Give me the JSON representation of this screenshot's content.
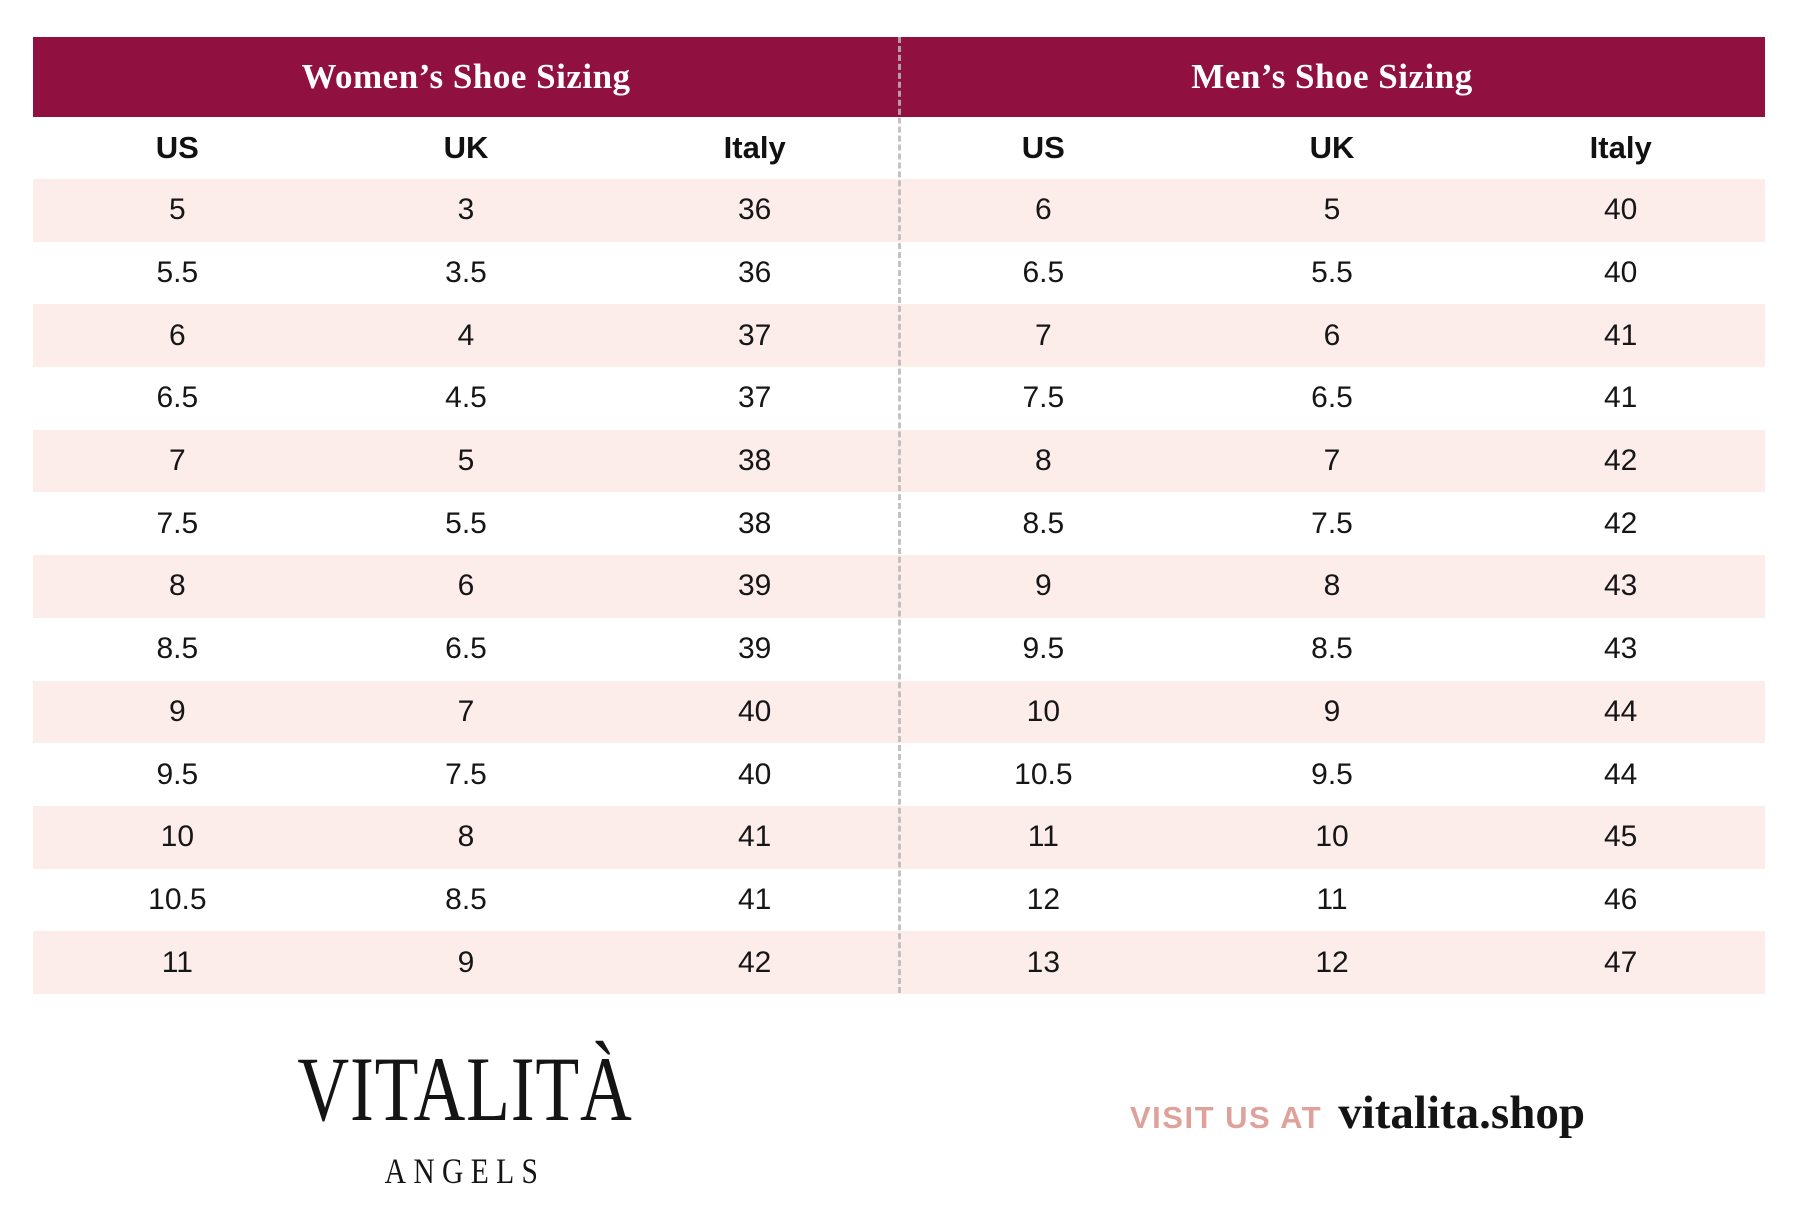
{
  "header": {
    "women_title": "Women’s Shoe Sizing",
    "men_title": "Men’s Shoe Sizing"
  },
  "columns": [
    "US",
    "UK",
    "Italy"
  ],
  "women_rows": [
    [
      "5",
      "3",
      "36"
    ],
    [
      "5.5",
      "3.5",
      "36"
    ],
    [
      "6",
      "4",
      "37"
    ],
    [
      "6.5",
      "4.5",
      "37"
    ],
    [
      "7",
      "5",
      "38"
    ],
    [
      "7.5",
      "5.5",
      "38"
    ],
    [
      "8",
      "6",
      "39"
    ],
    [
      "8.5",
      "6.5",
      "39"
    ],
    [
      "9",
      "7",
      "40"
    ],
    [
      "9.5",
      "7.5",
      "40"
    ],
    [
      "10",
      "8",
      "41"
    ],
    [
      "10.5",
      "8.5",
      "41"
    ],
    [
      "11",
      "9",
      "42"
    ]
  ],
  "men_rows": [
    [
      "6",
      "5",
      "40"
    ],
    [
      "6.5",
      "5.5",
      "40"
    ],
    [
      "7",
      "6",
      "41"
    ],
    [
      "7.5",
      "6.5",
      "41"
    ],
    [
      "8",
      "7",
      "42"
    ],
    [
      "8.5",
      "7.5",
      "42"
    ],
    [
      "9",
      "8",
      "43"
    ],
    [
      "9.5",
      "8.5",
      "43"
    ],
    [
      "10",
      "9",
      "44"
    ],
    [
      "10.5",
      "9.5",
      "44"
    ],
    [
      "11",
      "10",
      "45"
    ],
    [
      "12",
      "11",
      "46"
    ],
    [
      "13",
      "12",
      "47"
    ]
  ],
  "footer": {
    "brand_name": "VITALITÀ",
    "brand_sub": "ANGELS",
    "visit_label": "VISIT US AT",
    "visit_url": "vitalita.shop"
  },
  "colors": {
    "header_bg": "#901140",
    "row_pink": "#fcedeb",
    "visit_label_color": "#dfa29b"
  }
}
